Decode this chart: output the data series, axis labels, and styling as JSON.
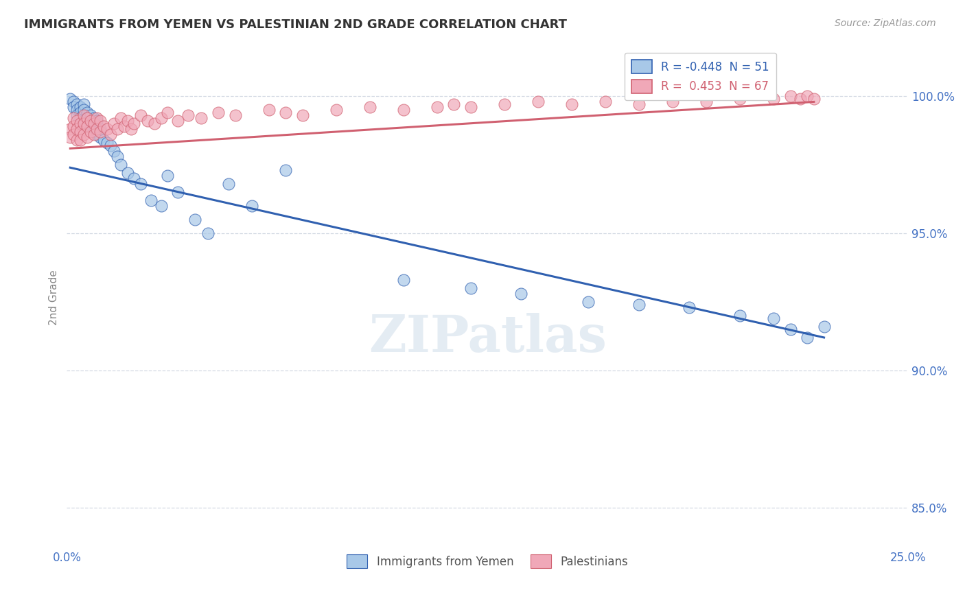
{
  "title": "IMMIGRANTS FROM YEMEN VS PALESTINIAN 2ND GRADE CORRELATION CHART",
  "source_text": "Source: ZipAtlas.com",
  "ylabel": "2nd Grade",
  "ytick_labels": [
    "85.0%",
    "90.0%",
    "95.0%",
    "100.0%"
  ],
  "ytick_values": [
    0.85,
    0.9,
    0.95,
    1.0
  ],
  "xlim": [
    0.0,
    0.25
  ],
  "ylim": [
    0.835,
    1.018
  ],
  "legend_r1": "R = -0.448  N = 51",
  "legend_r2": "R =  0.453  N = 67",
  "color_blue": "#a8c8e8",
  "color_pink": "#f0a8b8",
  "trendline_blue": "#3060b0",
  "trendline_pink": "#d06070",
  "background_color": "#ffffff",
  "watermark": "ZIPatlas",
  "blue_x": [
    0.001,
    0.002,
    0.002,
    0.003,
    0.003,
    0.003,
    0.004,
    0.004,
    0.004,
    0.005,
    0.005,
    0.005,
    0.006,
    0.006,
    0.007,
    0.007,
    0.008,
    0.008,
    0.009,
    0.009,
    0.01,
    0.01,
    0.011,
    0.012,
    0.013,
    0.014,
    0.015,
    0.016,
    0.018,
    0.02,
    0.022,
    0.025,
    0.028,
    0.03,
    0.033,
    0.038,
    0.042,
    0.048,
    0.055,
    0.065,
    0.1,
    0.12,
    0.135,
    0.155,
    0.17,
    0.185,
    0.2,
    0.21,
    0.215,
    0.22,
    0.225
  ],
  "blue_y": [
    0.999,
    0.998,
    0.996,
    0.997,
    0.995,
    0.993,
    0.996,
    0.994,
    0.992,
    0.997,
    0.995,
    0.99,
    0.994,
    0.992,
    0.993,
    0.989,
    0.992,
    0.987,
    0.991,
    0.986,
    0.988,
    0.985,
    0.984,
    0.983,
    0.982,
    0.98,
    0.978,
    0.975,
    0.972,
    0.97,
    0.968,
    0.962,
    0.96,
    0.971,
    0.965,
    0.955,
    0.95,
    0.968,
    0.96,
    0.973,
    0.933,
    0.93,
    0.928,
    0.925,
    0.924,
    0.923,
    0.92,
    0.919,
    0.915,
    0.912,
    0.916
  ],
  "pink_x": [
    0.001,
    0.001,
    0.002,
    0.002,
    0.002,
    0.003,
    0.003,
    0.003,
    0.004,
    0.004,
    0.004,
    0.005,
    0.005,
    0.005,
    0.006,
    0.006,
    0.006,
    0.007,
    0.007,
    0.008,
    0.008,
    0.009,
    0.009,
    0.01,
    0.01,
    0.011,
    0.012,
    0.013,
    0.014,
    0.015,
    0.016,
    0.017,
    0.018,
    0.019,
    0.02,
    0.022,
    0.024,
    0.026,
    0.028,
    0.03,
    0.033,
    0.036,
    0.04,
    0.045,
    0.05,
    0.06,
    0.065,
    0.07,
    0.08,
    0.09,
    0.1,
    0.11,
    0.115,
    0.12,
    0.13,
    0.14,
    0.15,
    0.16,
    0.17,
    0.18,
    0.19,
    0.2,
    0.21,
    0.215,
    0.218,
    0.22,
    0.222
  ],
  "pink_y": [
    0.988,
    0.985,
    0.992,
    0.989,
    0.986,
    0.991,
    0.988,
    0.984,
    0.99,
    0.987,
    0.984,
    0.993,
    0.99,
    0.986,
    0.992,
    0.989,
    0.985,
    0.991,
    0.987,
    0.99,
    0.986,
    0.992,
    0.988,
    0.991,
    0.987,
    0.989,
    0.988,
    0.986,
    0.99,
    0.988,
    0.992,
    0.989,
    0.991,
    0.988,
    0.99,
    0.993,
    0.991,
    0.99,
    0.992,
    0.994,
    0.991,
    0.993,
    0.992,
    0.994,
    0.993,
    0.995,
    0.994,
    0.993,
    0.995,
    0.996,
    0.995,
    0.996,
    0.997,
    0.996,
    0.997,
    0.998,
    0.997,
    0.998,
    0.997,
    0.998,
    0.998,
    0.999,
    0.999,
    1.0,
    0.999,
    1.0,
    0.999
  ],
  "blue_trend_x": [
    0.001,
    0.225
  ],
  "blue_trend_y": [
    0.974,
    0.912
  ],
  "pink_trend_x": [
    0.001,
    0.222
  ],
  "pink_trend_y": [
    0.981,
    0.998
  ]
}
